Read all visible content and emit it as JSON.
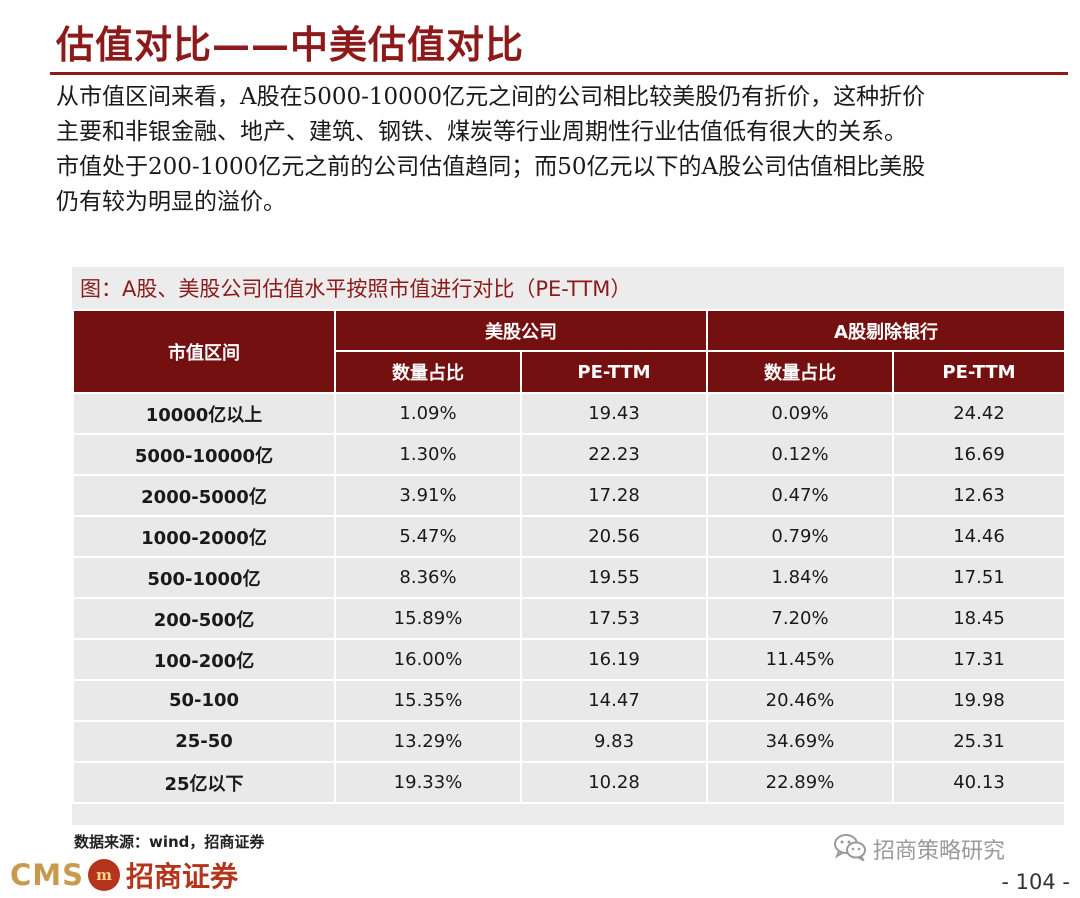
{
  "title": "估值对比——中美估值对比",
  "intro_lines": [
    "从市值区间来看，A股在5000-10000亿元之间的公司相比较美股仍有折价，这种折价",
    "主要和非银金融、地产、建筑、钢铁、煤炭等行业周期性行业估值低有很大的关系。",
    "市值处于200-1000亿元之前的公司估值趋同；而50亿元以下的A股公司估值相比美股",
    "仍有较为明显的溢价。"
  ],
  "table": {
    "caption": "图：A股、美股公司估值水平按照市值进行对比（PE-TTM）",
    "row_header": "市值区间",
    "groups": [
      "美股公司",
      "A股剔除银行"
    ],
    "subheaders": [
      "数量占比",
      "PE-TTM",
      "数量占比",
      "PE-TTM"
    ],
    "rows": [
      [
        "10000亿以上",
        "1.09%",
        "19.43",
        "0.09%",
        "24.42"
      ],
      [
        "5000-10000亿",
        "1.30%",
        "22.23",
        "0.12%",
        "16.69"
      ],
      [
        "2000-5000亿",
        "3.91%",
        "17.28",
        "0.47%",
        "12.63"
      ],
      [
        "1000-2000亿",
        "5.47%",
        "20.56",
        "0.79%",
        "14.46"
      ],
      [
        "500-1000亿",
        "8.36%",
        "19.55",
        "1.84%",
        "17.51"
      ],
      [
        "200-500亿",
        "15.89%",
        "17.53",
        "7.20%",
        "18.45"
      ],
      [
        "100-200亿",
        "16.00%",
        "16.19",
        "11.45%",
        "17.31"
      ],
      [
        "50-100",
        "15.35%",
        "14.47",
        "20.46%",
        "19.98"
      ],
      [
        "25-50",
        "13.29%",
        "9.83",
        "34.69%",
        "25.31"
      ],
      [
        "25亿以下",
        "19.33%",
        "10.28",
        "22.89%",
        "40.13"
      ]
    ]
  },
  "source": "数据来源：wind，招商证券",
  "logo": {
    "cms": "CMS",
    "mark": "m",
    "cn": "招商证券"
  },
  "watermark": {
    "icon": "wechat-icon",
    "label": "招商策略研究"
  },
  "page_number": "- 104 -",
  "colors": {
    "brand": "#8c1a1a",
    "header_bg": "#741010",
    "cell_bg": "#e9e9e9"
  }
}
